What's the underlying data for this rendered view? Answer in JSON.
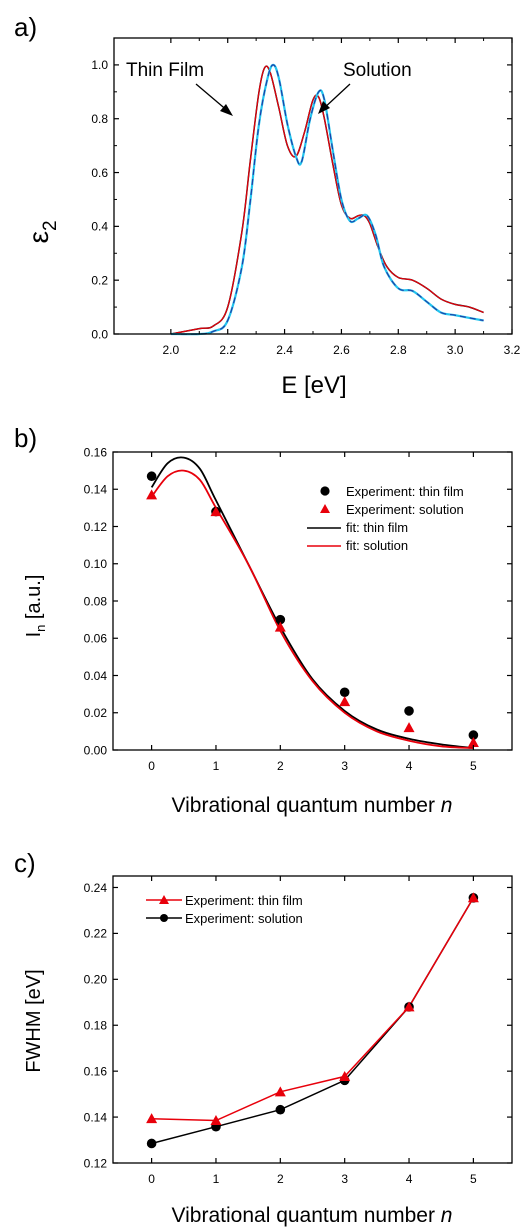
{
  "chart_data": [
    {
      "panel_label": "a)",
      "type": "line",
      "xlabel": "E [eV]",
      "ylabel": "ε",
      "ylabel_sub": "2",
      "xlim": [
        1.8,
        3.2
      ],
      "ylim": [
        0.0,
        1.1
      ],
      "xticks": [
        2.0,
        2.2,
        2.4,
        2.6,
        2.8,
        3.0,
        3.2
      ],
      "xtick_labels": [
        "2.0",
        "2.2",
        "2.4",
        "2.6",
        "2.8",
        "3.0",
        "3.2"
      ],
      "yticks": [
        0.0,
        0.2,
        0.4,
        0.6,
        0.8,
        1.0
      ],
      "ytick_labels": [
        "0.0",
        "0.2",
        "0.4",
        "0.6",
        "0.8",
        "1.0"
      ],
      "grid": false,
      "annotations": [
        {
          "text": "Thin Film",
          "x": 2.2,
          "y": 1.0,
          "arrow_to": [
            2.31,
            0.84
          ]
        },
        {
          "text": "Solution",
          "x": 2.72,
          "y": 1.0,
          "arrow_to": [
            2.56,
            0.84
          ]
        }
      ],
      "series": [
        {
          "key": "thin_film_black",
          "color": "#000000",
          "dash": "",
          "width": 1.5,
          "x": [
            2.0,
            2.1,
            2.15,
            2.2,
            2.25,
            2.28,
            2.31,
            2.33,
            2.35,
            2.38,
            2.41,
            2.44,
            2.47,
            2.5,
            2.52,
            2.54,
            2.57,
            2.6,
            2.63,
            2.66,
            2.68,
            2.7,
            2.73,
            2.76,
            2.8,
            2.85,
            2.9,
            2.95,
            3.0,
            3.05,
            3.1
          ],
          "y": [
            0.0,
            0.02,
            0.03,
            0.1,
            0.38,
            0.65,
            0.9,
            0.99,
            0.97,
            0.84,
            0.7,
            0.66,
            0.75,
            0.87,
            0.88,
            0.8,
            0.63,
            0.48,
            0.43,
            0.44,
            0.44,
            0.41,
            0.32,
            0.25,
            0.21,
            0.2,
            0.17,
            0.13,
            0.11,
            0.1,
            0.08
          ]
        },
        {
          "key": "thin_film_red",
          "color": "#e8000b",
          "dash": "",
          "width": 1.2,
          "x": [
            2.0,
            2.1,
            2.15,
            2.2,
            2.25,
            2.28,
            2.31,
            2.33,
            2.35,
            2.38,
            2.41,
            2.44,
            2.47,
            2.5,
            2.52,
            2.54,
            2.57,
            2.6,
            2.63,
            2.66,
            2.68,
            2.7,
            2.73,
            2.76,
            2.8,
            2.85,
            2.9,
            2.95,
            3.0,
            3.05,
            3.1
          ],
          "y": [
            0.0,
            0.02,
            0.03,
            0.1,
            0.38,
            0.65,
            0.9,
            0.99,
            0.97,
            0.84,
            0.7,
            0.66,
            0.75,
            0.87,
            0.88,
            0.8,
            0.63,
            0.48,
            0.43,
            0.44,
            0.44,
            0.41,
            0.32,
            0.25,
            0.21,
            0.2,
            0.17,
            0.13,
            0.11,
            0.1,
            0.08
          ]
        },
        {
          "key": "solution_cyan",
          "color": "#22c4ee",
          "dash": "",
          "width": 2.2,
          "x": [
            2.0,
            2.1,
            2.15,
            2.2,
            2.25,
            2.28,
            2.31,
            2.34,
            2.36,
            2.38,
            2.41,
            2.44,
            2.46,
            2.49,
            2.52,
            2.54,
            2.57,
            2.6,
            2.63,
            2.66,
            2.69,
            2.72,
            2.75,
            2.8,
            2.85,
            2.9,
            2.95,
            3.0,
            3.05,
            3.1
          ],
          "y": [
            0.0,
            0.0,
            0.01,
            0.05,
            0.25,
            0.5,
            0.78,
            0.95,
            1.0,
            0.95,
            0.78,
            0.66,
            0.64,
            0.8,
            0.9,
            0.87,
            0.68,
            0.5,
            0.42,
            0.43,
            0.44,
            0.37,
            0.25,
            0.17,
            0.16,
            0.12,
            0.08,
            0.07,
            0.06,
            0.05
          ]
        },
        {
          "key": "solution_blue_dash",
          "color": "#1f3fa8",
          "dash": "6,4",
          "width": 1.2,
          "x": [
            2.0,
            2.1,
            2.15,
            2.2,
            2.25,
            2.28,
            2.31,
            2.34,
            2.36,
            2.38,
            2.41,
            2.44,
            2.46,
            2.49,
            2.52,
            2.54,
            2.57,
            2.6,
            2.63,
            2.66,
            2.69,
            2.72,
            2.75,
            2.8,
            2.85,
            2.9,
            2.95,
            3.0,
            3.05,
            3.1
          ],
          "y": [
            0.0,
            0.0,
            0.01,
            0.05,
            0.25,
            0.5,
            0.78,
            0.95,
            1.0,
            0.95,
            0.78,
            0.66,
            0.64,
            0.8,
            0.9,
            0.87,
            0.68,
            0.5,
            0.42,
            0.43,
            0.44,
            0.37,
            0.25,
            0.17,
            0.16,
            0.12,
            0.08,
            0.07,
            0.06,
            0.05
          ]
        }
      ]
    },
    {
      "panel_label": "b)",
      "type": "scatter",
      "xlabel": "Vibrational quantum number ",
      "xlabel_italic": "n",
      "ylabel": "I",
      "ylabel_sub": "n",
      "ylabel_unit": " [a.u.]",
      "xlim": [
        -0.6,
        5.6
      ],
      "ylim": [
        0.0,
        0.16
      ],
      "xticks": [
        0,
        1,
        2,
        3,
        4,
        5
      ],
      "xtick_labels": [
        "0",
        "1",
        "2",
        "3",
        "4",
        "5"
      ],
      "yticks": [
        0.0,
        0.02,
        0.04,
        0.06,
        0.08,
        0.1,
        0.12,
        0.14,
        0.16
      ],
      "ytick_labels": [
        "0.00",
        "0.02",
        "0.04",
        "0.06",
        "0.08",
        "0.10",
        "0.12",
        "0.14",
        "0.16"
      ],
      "grid": false,
      "legend_position": "top-right",
      "series": [
        {
          "key": "exp_thin_film",
          "name": "Experiment: thin film",
          "marker": "circle",
          "color": "#000000",
          "x": [
            0,
            1,
            2,
            3,
            4,
            5
          ],
          "y": [
            0.147,
            0.128,
            0.07,
            0.031,
            0.021,
            0.008
          ]
        },
        {
          "key": "exp_solution",
          "name": "Experiment: solution",
          "marker": "triangle",
          "color": "#e8000b",
          "x": [
            0,
            1,
            2,
            3,
            4,
            5
          ],
          "y": [
            0.137,
            0.128,
            0.066,
            0.026,
            0.012,
            0.004
          ]
        },
        {
          "key": "fit_thin_film",
          "name": "fit: thin film",
          "marker": "line",
          "color": "#000000",
          "x": [
            0,
            0.25,
            0.5,
            0.75,
            1.0,
            1.5,
            2.0,
            2.5,
            3.0,
            3.5,
            4.0,
            4.5,
            5.0
          ],
          "y": [
            0.141,
            0.154,
            0.157,
            0.151,
            0.134,
            0.1,
            0.066,
            0.038,
            0.021,
            0.011,
            0.006,
            0.003,
            0.001
          ]
        },
        {
          "key": "fit_solution",
          "name": "fit: solution",
          "marker": "line",
          "color": "#e8000b",
          "x": [
            0,
            0.25,
            0.5,
            0.75,
            1.0,
            1.5,
            2.0,
            2.5,
            3.0,
            3.5,
            4.0,
            4.5,
            5.0
          ],
          "y": [
            0.136,
            0.147,
            0.15,
            0.145,
            0.13,
            0.1,
            0.064,
            0.037,
            0.02,
            0.01,
            0.005,
            0.002,
            0.001
          ]
        }
      ]
    },
    {
      "panel_label": "c)",
      "type": "line",
      "xlabel": "Vibrational quantum number ",
      "xlabel_italic": "n",
      "ylabel": "FWHM [eV]",
      "xlim": [
        -0.6,
        5.6
      ],
      "ylim": [
        0.12,
        0.245
      ],
      "xticks": [
        0,
        1,
        2,
        3,
        4,
        5
      ],
      "xtick_labels": [
        "0",
        "1",
        "2",
        "3",
        "4",
        "5"
      ],
      "yticks": [
        0.12,
        0.14,
        0.16,
        0.18,
        0.2,
        0.22,
        0.24
      ],
      "ytick_labels": [
        "0.12",
        "0.14",
        "0.16",
        "0.18",
        "0.20",
        "0.22",
        "0.24"
      ],
      "grid": false,
      "legend_position": "top-left",
      "series": [
        {
          "key": "exp_solution",
          "name": "Experiment: solution",
          "marker": "circle",
          "color": "#000000",
          "x": [
            0,
            1,
            2,
            3,
            4,
            5
          ],
          "y": [
            0.1285,
            0.1358,
            0.1432,
            0.156,
            0.188,
            0.2355
          ]
        },
        {
          "key": "exp_thin_film",
          "name": "Experiment: thin film",
          "marker": "triangle",
          "color": "#e8000b",
          "x": [
            0,
            1,
            2,
            3,
            4,
            5
          ],
          "y": [
            0.1393,
            0.1385,
            0.151,
            0.1577,
            0.188,
            0.2355
          ]
        }
      ]
    }
  ]
}
